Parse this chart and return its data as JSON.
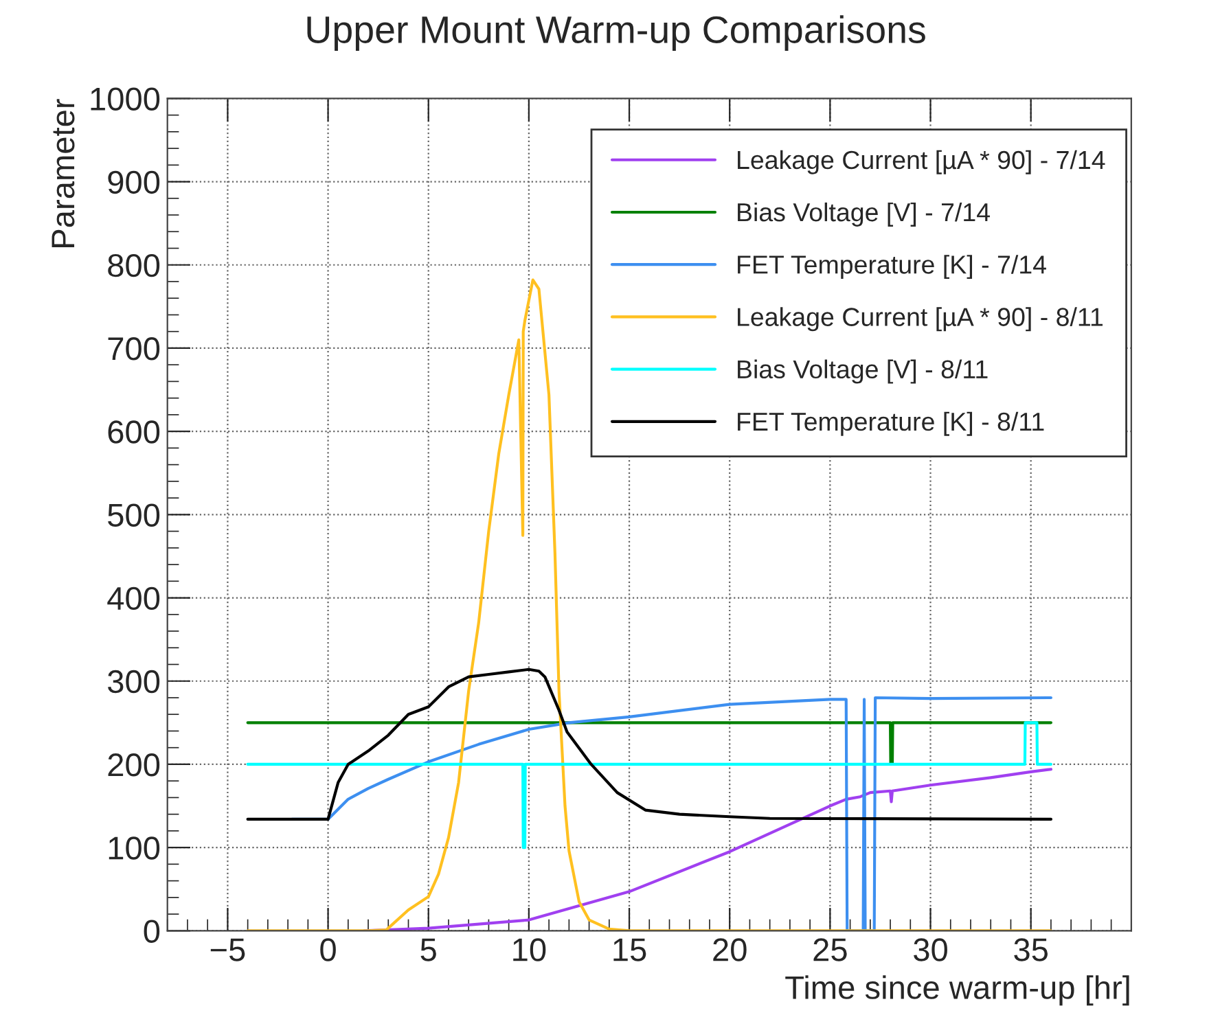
{
  "chart_data": {
    "type": "line",
    "title": "Upper Mount Warm-up Comparisons",
    "xlabel": "Time since warm-up [hr]",
    "ylabel": "Parameter",
    "xlim": [
      -8,
      40
    ],
    "xticks": [
      {
        "value": -5,
        "label": "−5"
      },
      0,
      5,
      10,
      15,
      20,
      25,
      30,
      35
    ],
    "ylim": [
      0,
      1000
    ],
    "yticks": [
      0,
      100,
      200,
      300,
      400,
      500,
      600,
      700,
      800,
      900,
      1000
    ],
    "grid": true,
    "legend": "top right",
    "marker": "none",
    "line_style": "solid",
    "series": [
      {
        "name": "Leakage Current [µA * 90] - 7/14",
        "color": "#a040f0",
        "x": [
          1.8,
          5,
          10,
          15,
          20,
          25,
          25.8,
          26.5,
          27,
          28,
          28.05,
          28.1,
          30,
          33,
          35,
          36
        ],
        "values": [
          0,
          3,
          13,
          47,
          95,
          150,
          158,
          161,
          166,
          168,
          155,
          168,
          175,
          184,
          191,
          194
        ]
      },
      {
        "name": "Bias Voltage [V] - 7/14",
        "color": "#008000",
        "x": [
          -4,
          28,
          28.02,
          28.1,
          28.12,
          36
        ],
        "values": [
          250,
          250,
          200,
          200,
          250,
          250
        ]
      },
      {
        "name": "FET Temperature [K] - 7/14",
        "color": "#3d8ff0",
        "x": [
          -1.8,
          0,
          1,
          2,
          3,
          5,
          7.5,
          10,
          12,
          15,
          20,
          25,
          25.8,
          25.85,
          26.65,
          26.7,
          26.75,
          27.2,
          27.25,
          30,
          36
        ],
        "values": [
          134,
          134,
          158,
          171,
          182,
          203,
          224,
          242,
          250,
          257,
          272,
          278,
          278,
          0,
          0,
          278,
          0,
          0,
          280,
          279,
          280
        ]
      },
      {
        "name": "Leakage Current [µA * 90] - 8/11",
        "color": "#ffc020",
        "x": [
          -4,
          2,
          2.9,
          4,
          5,
          5.5,
          6,
          6.5,
          7,
          7.5,
          8,
          8.5,
          9,
          9.5,
          9.7,
          9.72,
          9.8,
          10.2,
          10.5,
          11,
          11.3,
          11.5,
          11.8,
          12,
          12.5,
          13,
          14,
          15,
          36
        ],
        "values": [
          0,
          0,
          1,
          25,
          41,
          68,
          112,
          178,
          288,
          370,
          480,
          573,
          644,
          710,
          475,
          720,
          733,
          782,
          771,
          644,
          453,
          288,
          150,
          96,
          35,
          13,
          2,
          0,
          0
        ]
      },
      {
        "name": "Bias Voltage [V] - 8/11",
        "color": "#00ffff",
        "x": [
          -4,
          9.7,
          9.72,
          9.8,
          9.82,
          34.7,
          34.72,
          35.3,
          35.32,
          36
        ],
        "values": [
          200,
          200,
          100,
          100,
          200,
          200,
          250,
          250,
          200,
          200
        ]
      },
      {
        "name": "FET Temperature [K] - 8/11",
        "color": "#000000",
        "x": [
          -4,
          0,
          0.5,
          1,
          2,
          3,
          4,
          5,
          6,
          7,
          8,
          9,
          10,
          10.5,
          10.8,
          11.5,
          11.9,
          13.1,
          14.4,
          15.8,
          17.5,
          20,
          22,
          36
        ],
        "values": [
          134,
          134,
          178,
          200,
          216,
          235,
          260,
          269,
          293,
          305,
          308,
          311,
          314,
          312,
          305,
          265,
          239,
          200,
          166,
          145,
          140,
          137,
          135,
          134
        ]
      }
    ]
  }
}
